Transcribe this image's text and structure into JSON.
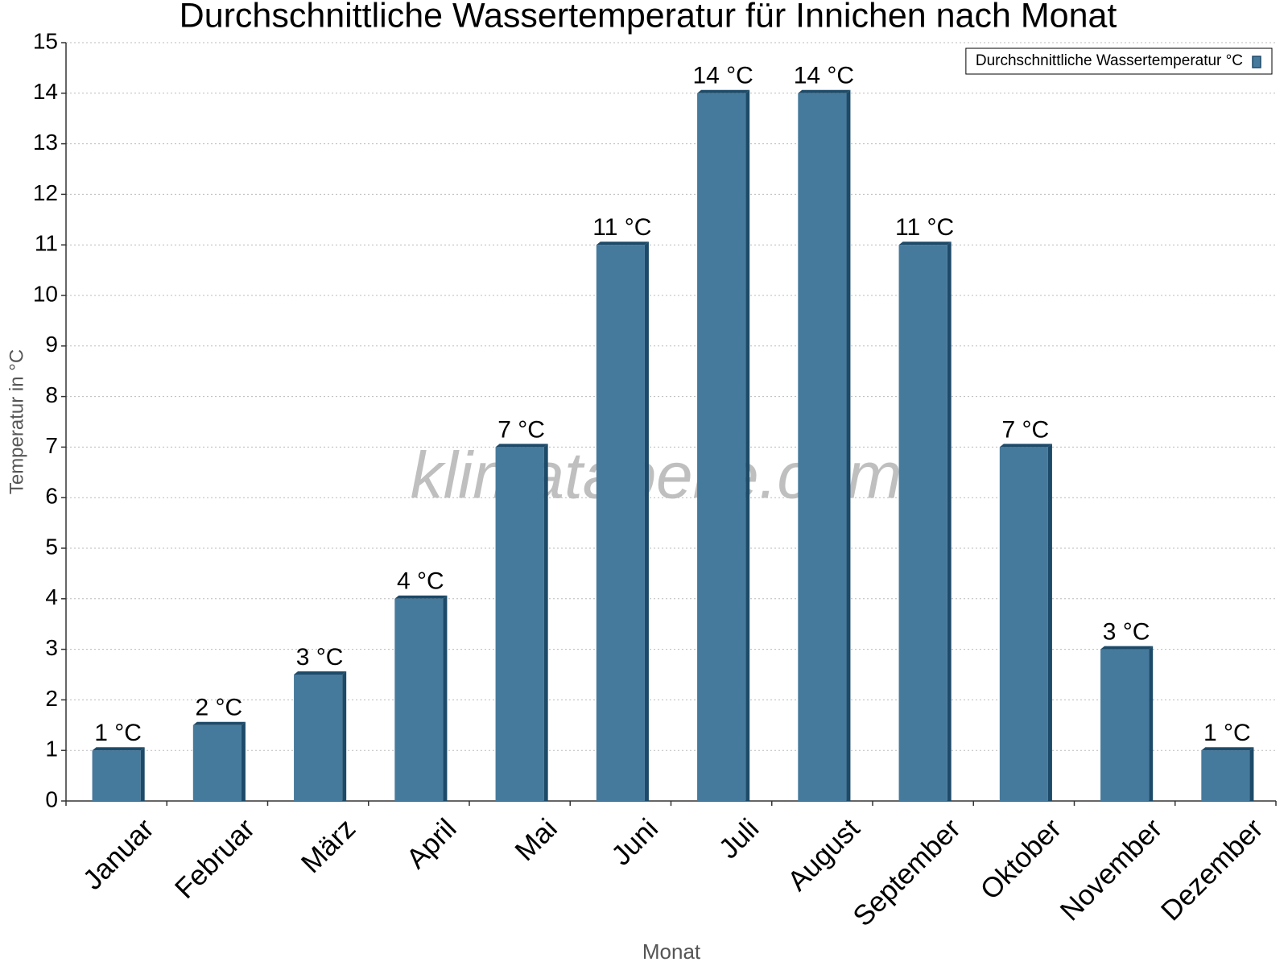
{
  "chart_data": {
    "type": "bar",
    "title": "Durchschnittliche Wassertemperatur für Innichen nach Monat",
    "watermark": "klimatabelle.com",
    "x_label": "Monat",
    "y_label": "Temperatur in °C",
    "categories": [
      "Januar",
      "Februar",
      "März",
      "April",
      "Mai",
      "Juni",
      "Juli",
      "August",
      "September",
      "Oktober",
      "November",
      "Dezember"
    ],
    "series": [
      {
        "name": "Durchschnittliche Wassertemperatur °C",
        "color": "#467a9c",
        "values": [
          1,
          1.5,
          2.5,
          4,
          7,
          11,
          14,
          14,
          11,
          7,
          3,
          1
        ],
        "value_labels": [
          "1 °C",
          "2 °C",
          "3 °C",
          "4 °C",
          "7 °C",
          "11 °C",
          "14 °C",
          "14 °C",
          "11 °C",
          "7 °C",
          "3 °C",
          "1 °C"
        ]
      }
    ],
    "ylim": [
      0,
      15
    ],
    "yticks": [
      0,
      1,
      2,
      3,
      4,
      5,
      6,
      7,
      8,
      9,
      10,
      11,
      12,
      13,
      14,
      15
    ],
    "grid": true,
    "legend": "top-right"
  }
}
